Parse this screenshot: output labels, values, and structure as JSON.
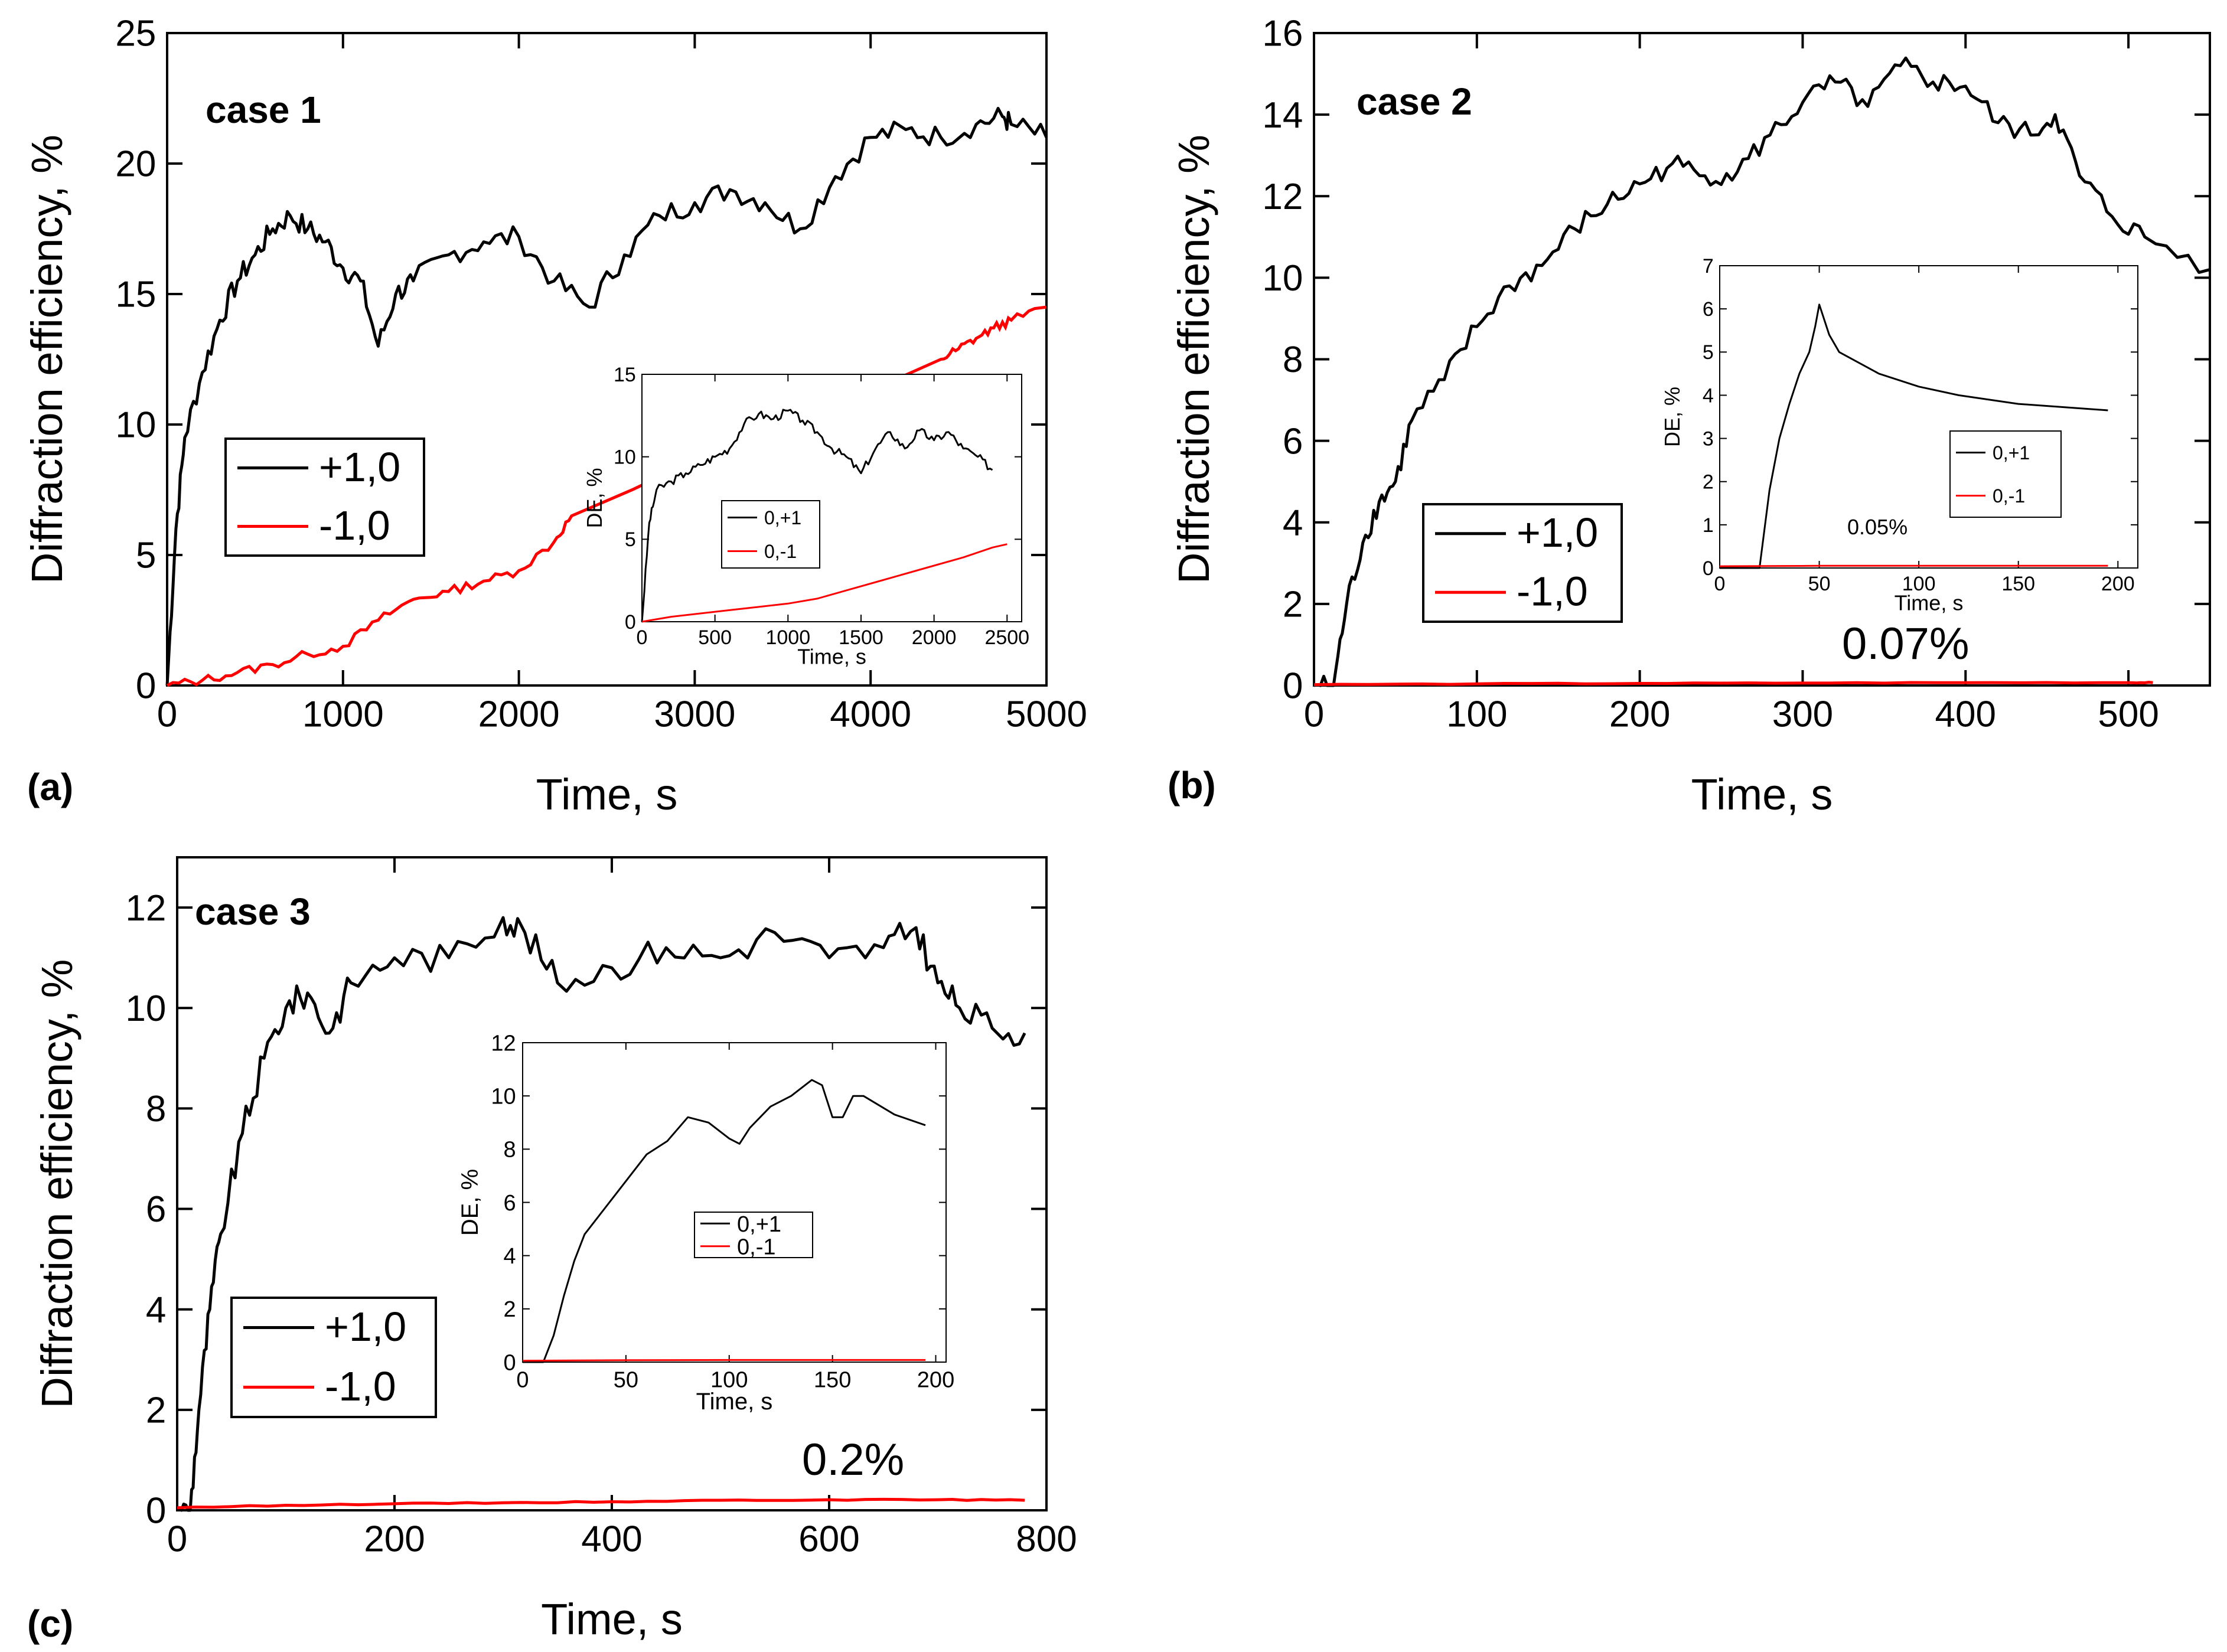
{
  "panels": [
    {
      "id": "a",
      "panel_label": "(a)",
      "case_label": "case 1",
      "xlabel": "Time, s",
      "ylabel": "Diffraction efficiency, %",
      "xlim": [
        0,
        5000
      ],
      "ylim": [
        0,
        25
      ],
      "xticks": [
        0,
        1000,
        2000,
        3000,
        4000,
        5000
      ],
      "yticks": [
        0,
        5,
        10,
        15,
        20,
        25
      ],
      "legend": [
        "+1,0",
        "-1,0"
      ],
      "note": "",
      "inset": {
        "xlabel": "Time, s",
        "ylabel": "DE, %",
        "xlim": [
          0,
          2600
        ],
        "ylim": [
          0,
          15
        ],
        "xticks": [
          0,
          500,
          1000,
          1500,
          2000,
          2500
        ],
        "yticks": [
          0,
          5,
          10,
          15
        ],
        "legend": [
          "0,+1",
          "0,-1"
        ],
        "note": ""
      }
    },
    {
      "id": "b",
      "panel_label": "(b)",
      "case_label": "case 2",
      "xlabel": "Time, s",
      "ylabel": "Diffraction efficiency, %",
      "xlim": [
        0,
        550
      ],
      "ylim": [
        0,
        16
      ],
      "xticks": [
        0,
        100,
        200,
        300,
        400,
        500
      ],
      "yticks": [
        0,
        2,
        4,
        6,
        8,
        10,
        12,
        14,
        16
      ],
      "legend": [
        "+1,0",
        "-1,0"
      ],
      "note": "0.07%",
      "inset": {
        "xlabel": "Time, s",
        "ylabel": "DE, %",
        "xlim": [
          0,
          210
        ],
        "ylim": [
          0,
          7
        ],
        "xticks": [
          0,
          50,
          100,
          150,
          200
        ],
        "yticks": [
          0,
          1,
          2,
          3,
          4,
          5,
          6,
          7
        ],
        "legend": [
          "0,+1",
          "0,-1"
        ],
        "note": "0.05%"
      }
    },
    {
      "id": "c",
      "panel_label": "(c)",
      "case_label": "case 3",
      "xlabel": "Time, s",
      "ylabel": "Diffraction efficiency, %",
      "xlim": [
        0,
        800
      ],
      "ylim": [
        0,
        13
      ],
      "xticks": [
        0,
        200,
        400,
        600,
        800
      ],
      "yticks": [
        0,
        2,
        4,
        6,
        8,
        10,
        12
      ],
      "legend": [
        "+1,0",
        "-1,0"
      ],
      "note": "0.2%",
      "inset": {
        "xlabel": "Time, s",
        "ylabel": "DE, %",
        "xlim": [
          0,
          205
        ],
        "ylim": [
          0,
          12
        ],
        "xticks": [
          0,
          50,
          100,
          150,
          200
        ],
        "yticks": [
          0,
          2,
          4,
          6,
          8,
          10,
          12
        ],
        "legend": [
          "0,+1",
          "0,-1"
        ],
        "note": ""
      }
    }
  ],
  "colors": {
    "plus": "#000000",
    "minus": "#ff0000",
    "axis": "#000000"
  },
  "chart_data": [
    {
      "type": "line",
      "title": "case 1",
      "xlabel": "Time, s",
      "ylabel": "Diffraction efficiency, %",
      "xlim": [
        0,
        5000
      ],
      "ylim": [
        0,
        25
      ],
      "series": [
        {
          "name": "+1,0",
          "x": [
            0,
            50,
            100,
            200,
            300,
            400,
            500,
            600,
            700,
            800,
            900,
            1000,
            1100,
            1200,
            1300,
            1400,
            1600,
            1800,
            2000,
            2200,
            2400,
            2600,
            2800,
            3000,
            3200,
            3400,
            3600,
            3800,
            4000,
            4200,
            4400,
            4600,
            4750,
            4800,
            5000
          ],
          "values": [
            0,
            6,
            9.5,
            12,
            14,
            15.5,
            16.5,
            17.5,
            18,
            17.5,
            17,
            16,
            15.5,
            13,
            15,
            15.5,
            16.5,
            17,
            17.2,
            15.5,
            14.5,
            16.5,
            18,
            18.5,
            19,
            18.5,
            17.5,
            19.5,
            21,
            21.3,
            21,
            21.5,
            21.8,
            21.5,
            21
          ]
        },
        {
          "name": "-1,0",
          "x": [
            0,
            200,
            400,
            600,
            800,
            1000,
            1200,
            1400,
            1600,
            1800,
            2000,
            2200,
            2300,
            4400,
            4500,
            4600,
            4700,
            4800,
            5000
          ],
          "values": [
            0,
            0.2,
            0.5,
            0.8,
            1.2,
            1.5,
            2.5,
            3.3,
            3.6,
            4,
            4.4,
            5.5,
            6.5,
            12.5,
            12.9,
            13.3,
            13.7,
            14,
            14.5
          ]
        }
      ]
    },
    {
      "type": "line",
      "title": "case 1 inset",
      "xlabel": "Time, s",
      "ylabel": "DE, %",
      "xlim": [
        0,
        2600
      ],
      "ylim": [
        0,
        15
      ],
      "series": [
        {
          "name": "0,+1",
          "x": [
            0,
            50,
            100,
            200,
            300,
            400,
            500,
            600,
            700,
            800,
            900,
            1000,
            1100,
            1200,
            1300,
            1400,
            1500,
            1600,
            1700,
            1800,
            1900,
            2000,
            2100,
            2200,
            2300,
            2400
          ],
          "values": [
            0,
            6,
            8,
            8.5,
            9,
            9.5,
            10,
            10.5,
            12,
            12.6,
            12.3,
            12.8,
            12.2,
            11.5,
            10.5,
            10,
            9,
            10.5,
            11.5,
            10.5,
            11.6,
            11,
            11.5,
            10.5,
            10,
            9.2
          ]
        },
        {
          "name": "0,-1",
          "x": [
            0,
            200,
            400,
            600,
            800,
            1000,
            1200,
            1400,
            1600,
            1800,
            2000,
            2200,
            2400,
            2500
          ],
          "values": [
            0,
            0.3,
            0.5,
            0.7,
            0.9,
            1.1,
            1.4,
            1.9,
            2.4,
            2.9,
            3.4,
            3.9,
            4.5,
            4.7
          ]
        }
      ]
    },
    {
      "type": "line",
      "title": "case 2",
      "xlabel": "Time, s",
      "ylabel": "Diffraction efficiency, %",
      "xlim": [
        0,
        550
      ],
      "ylim": [
        0,
        16
      ],
      "series": [
        {
          "name": "+1,0",
          "x": [
            0,
            12,
            20,
            30,
            40,
            50,
            60,
            80,
            100,
            120,
            140,
            160,
            180,
            200,
            220,
            240,
            260,
            280,
            300,
            320,
            340,
            360,
            380,
            400,
            420,
            440,
            455,
            470,
            490,
            510,
            550
          ],
          "values": [
            0,
            0,
            2,
            3.5,
            4.5,
            5,
            6.5,
            7.5,
            8.8,
            9.8,
            10.3,
            11.2,
            11.8,
            12.3,
            12.8,
            12.5,
            12.6,
            13.5,
            14.3,
            14.8,
            14.2,
            15.2,
            14.8,
            14.7,
            13.8,
            13.5,
            14,
            12.5,
            11.5,
            11,
            10.2
          ]
        },
        {
          "name": "-1,0",
          "x": [
            0,
            100,
            200,
            300,
            400,
            500,
            515
          ],
          "values": [
            0.02,
            0.04,
            0.05,
            0.06,
            0.07,
            0.07,
            0.07
          ]
        }
      ]
    },
    {
      "type": "line",
      "title": "case 2 inset",
      "xlabel": "Time, s",
      "ylabel": "DE, %",
      "xlim": [
        0,
        210
      ],
      "ylim": [
        0,
        7
      ],
      "series": [
        {
          "name": "0,+1",
          "x": [
            0,
            20,
            25,
            30,
            35,
            40,
            45,
            48,
            50,
            55,
            60,
            80,
            100,
            120,
            150,
            180,
            195
          ],
          "values": [
            0,
            0,
            1.8,
            3,
            3.8,
            4.5,
            5,
            5.6,
            6.1,
            5.4,
            5,
            4.5,
            4.2,
            4,
            3.8,
            3.7,
            3.65
          ]
        },
        {
          "name": "0,-1",
          "x": [
            0,
            50,
            100,
            150,
            195
          ],
          "values": [
            0.04,
            0.05,
            0.05,
            0.05,
            0.05
          ]
        }
      ]
    },
    {
      "type": "line",
      "title": "case 3",
      "xlabel": "Time, s",
      "ylabel": "Diffraction efficiency, %",
      "xlim": [
        0,
        800
      ],
      "ylim": [
        0,
        13
      ],
      "series": [
        {
          "name": "+1,0",
          "x": [
            0,
            12,
            20,
            30,
            40,
            60,
            80,
            100,
            120,
            140,
            160,
            200,
            250,
            300,
            320,
            350,
            400,
            450,
            500,
            550,
            600,
            650,
            680,
            700,
            720,
            750,
            780
          ],
          "values": [
            0,
            0,
            2,
            4,
            5.5,
            7.5,
            9,
            10,
            10.3,
            9.5,
            10.5,
            11,
            11,
            11.8,
            11.5,
            10.5,
            10.8,
            11.2,
            11,
            11.5,
            11,
            11.2,
            11.6,
            10.5,
            10,
            9.6,
            9.5
          ]
        },
        {
          "name": "-1,0",
          "x": [
            0,
            100,
            200,
            300,
            400,
            500,
            600,
            700,
            780
          ],
          "values": [
            0.05,
            0.1,
            0.13,
            0.15,
            0.17,
            0.2,
            0.21,
            0.21,
            0.2
          ]
        }
      ]
    },
    {
      "type": "line",
      "title": "case 3 inset",
      "xlabel": "Time, s",
      "ylabel": "DE, %",
      "xlim": [
        0,
        205
      ],
      "ylim": [
        0,
        12
      ],
      "series": [
        {
          "name": "0,+1",
          "x": [
            0,
            10,
            15,
            20,
            25,
            30,
            40,
            50,
            60,
            70,
            80,
            90,
            100,
            105,
            110,
            120,
            130,
            140,
            145,
            150,
            155,
            160,
            165,
            180,
            195
          ],
          "values": [
            0,
            0,
            1,
            2.5,
            3.8,
            4.8,
            5.8,
            6.8,
            7.8,
            8.3,
            9.2,
            9,
            8.4,
            8.2,
            8.8,
            9.6,
            10,
            10.6,
            10.4,
            9.2,
            9.2,
            10,
            10,
            9.3,
            8.9
          ]
        },
        {
          "name": "0,-1",
          "x": [
            0,
            50,
            100,
            150,
            195
          ],
          "values": [
            0.05,
            0.07,
            0.08,
            0.08,
            0.08
          ]
        }
      ]
    }
  ]
}
